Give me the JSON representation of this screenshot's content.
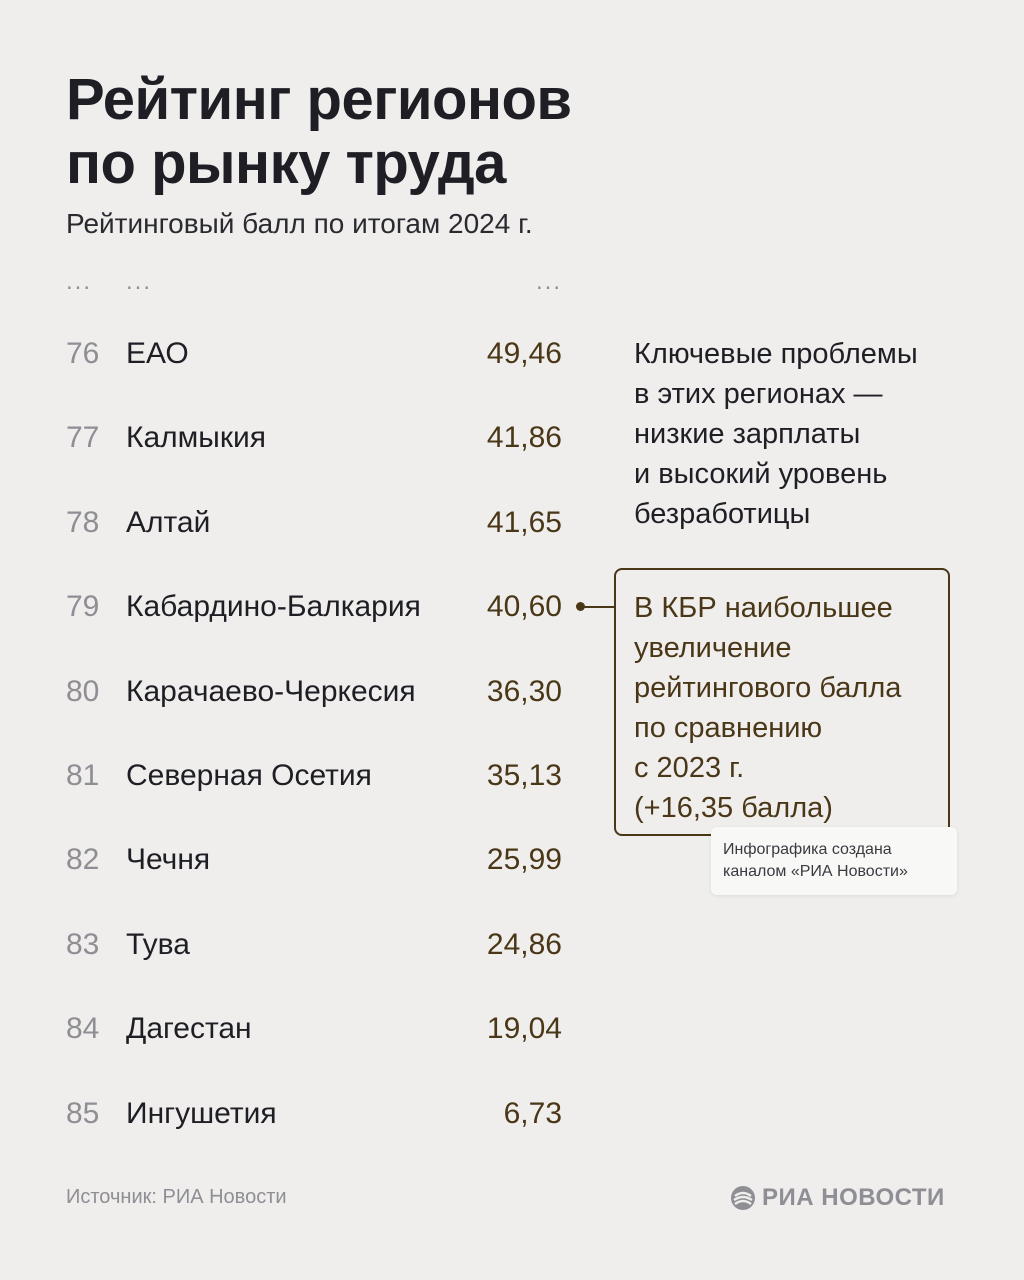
{
  "header": {
    "title_line1": "Рейтинг регионов",
    "title_line2": "по рынку труда",
    "subtitle": "Рейтинговый балл по итогам 2024 г."
  },
  "table": {
    "ellipsis": "...",
    "rows": [
      {
        "rank": "76",
        "region": "ЕАО",
        "score": "49,46"
      },
      {
        "rank": "77",
        "region": "Калмыкия",
        "score": "41,86"
      },
      {
        "rank": "78",
        "region": "Алтай",
        "score": "41,65"
      },
      {
        "rank": "79",
        "region": "Кабардино-Балкария",
        "score": "40,60"
      },
      {
        "rank": "80",
        "region": "Карачаево-Черкесия",
        "score": "36,30"
      },
      {
        "rank": "81",
        "region": "Северная Осетия",
        "score": "35,13"
      },
      {
        "rank": "82",
        "region": "Чечня",
        "score": "25,99"
      },
      {
        "rank": "83",
        "region": "Тува",
        "score": "24,86"
      },
      {
        "rank": "84",
        "region": "Дагестан",
        "score": "19,04"
      },
      {
        "rank": "85",
        "region": "Ингушетия",
        "score": "6,73"
      }
    ]
  },
  "note": {
    "lines": [
      "Ключевые проблемы",
      "в этих регионах —",
      "низкие зарплаты",
      "и высокий уровень",
      "безработицы"
    ]
  },
  "callout": {
    "lines": [
      "В КБР наибольшее",
      "увеличение",
      "рейтингового балла",
      "по сравнению",
      "с 2023 г.",
      "(+16,35 балла)"
    ]
  },
  "credit": {
    "line1": "Инфографика создана",
    "line2": "каналом «РИА Новости»"
  },
  "footer": {
    "source": "Источник: РИА Новости",
    "logo_text": "РИА НОВОСТИ",
    "logo_icon": "ria-logo-icon"
  },
  "colors": {
    "background": "#efeeec",
    "accent": "#4a3717",
    "muted": "#8e8e94",
    "text": "#1e1e24"
  }
}
